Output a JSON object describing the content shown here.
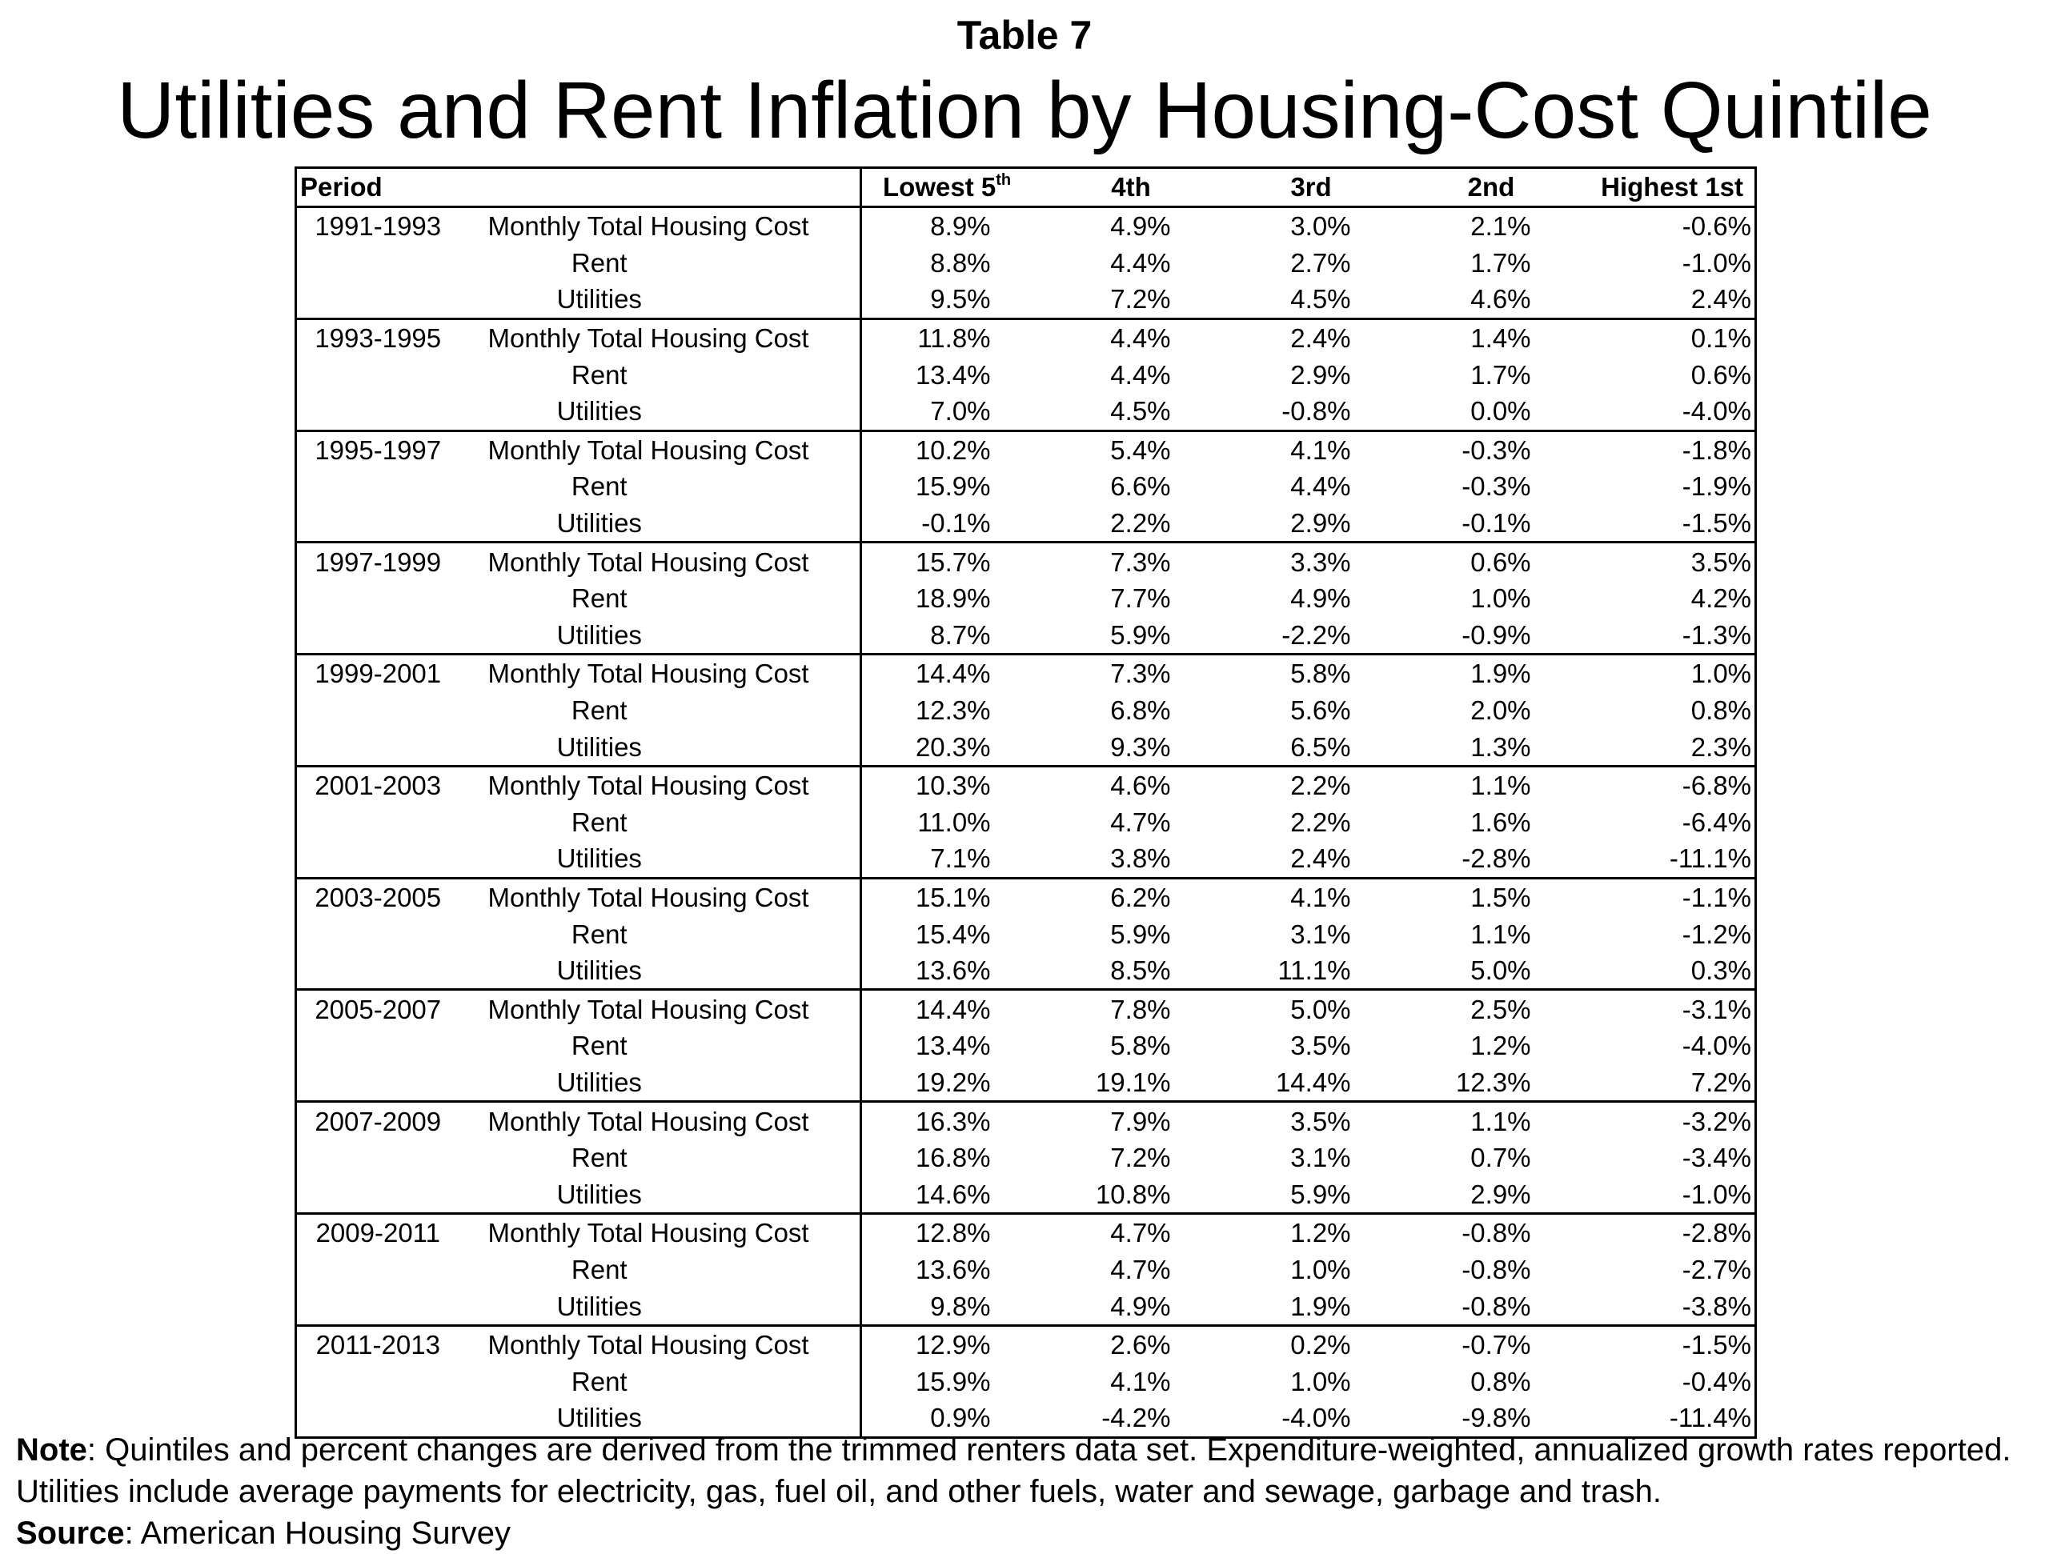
{
  "heading": {
    "table_label": "Table 7",
    "title": "Utilities and Rent Inflation by Housing-Cost Quintile"
  },
  "table": {
    "headers": {
      "period": "Period",
      "lowest": "Lowest 5",
      "lowest_sup": "th",
      "q4": "4th",
      "q3": "3rd",
      "q2": "2nd",
      "highest": "Highest 1st"
    },
    "measure_labels": {
      "total": "Monthly Total Housing Cost",
      "rent": "Rent",
      "utilities": "Utilities"
    },
    "periods": [
      {
        "period": "1991-1993",
        "rows": [
          [
            "8.9%",
            "4.9%",
            "3.0%",
            "2.1%",
            "-0.6%"
          ],
          [
            "8.8%",
            "4.4%",
            "2.7%",
            "1.7%",
            "-1.0%"
          ],
          [
            "9.5%",
            "7.2%",
            "4.5%",
            "4.6%",
            "2.4%"
          ]
        ]
      },
      {
        "period": "1993-1995",
        "rows": [
          [
            "11.8%",
            "4.4%",
            "2.4%",
            "1.4%",
            "0.1%"
          ],
          [
            "13.4%",
            "4.4%",
            "2.9%",
            "1.7%",
            "0.6%"
          ],
          [
            "7.0%",
            "4.5%",
            "-0.8%",
            "0.0%",
            "-4.0%"
          ]
        ]
      },
      {
        "period": "1995-1997",
        "rows": [
          [
            "10.2%",
            "5.4%",
            "4.1%",
            "-0.3%",
            "-1.8%"
          ],
          [
            "15.9%",
            "6.6%",
            "4.4%",
            "-0.3%",
            "-1.9%"
          ],
          [
            "-0.1%",
            "2.2%",
            "2.9%",
            "-0.1%",
            "-1.5%"
          ]
        ]
      },
      {
        "period": "1997-1999",
        "rows": [
          [
            "15.7%",
            "7.3%",
            "3.3%",
            "0.6%",
            "3.5%"
          ],
          [
            "18.9%",
            "7.7%",
            "4.9%",
            "1.0%",
            "4.2%"
          ],
          [
            "8.7%",
            "5.9%",
            "-2.2%",
            "-0.9%",
            "-1.3%"
          ]
        ]
      },
      {
        "period": "1999-2001",
        "rows": [
          [
            "14.4%",
            "7.3%",
            "5.8%",
            "1.9%",
            "1.0%"
          ],
          [
            "12.3%",
            "6.8%",
            "5.6%",
            "2.0%",
            "0.8%"
          ],
          [
            "20.3%",
            "9.3%",
            "6.5%",
            "1.3%",
            "2.3%"
          ]
        ]
      },
      {
        "period": "2001-2003",
        "rows": [
          [
            "10.3%",
            "4.6%",
            "2.2%",
            "1.1%",
            "-6.8%"
          ],
          [
            "11.0%",
            "4.7%",
            "2.2%",
            "1.6%",
            "-6.4%"
          ],
          [
            "7.1%",
            "3.8%",
            "2.4%",
            "-2.8%",
            "-11.1%"
          ]
        ]
      },
      {
        "period": "2003-2005",
        "rows": [
          [
            "15.1%",
            "6.2%",
            "4.1%",
            "1.5%",
            "-1.1%"
          ],
          [
            "15.4%",
            "5.9%",
            "3.1%",
            "1.1%",
            "-1.2%"
          ],
          [
            "13.6%",
            "8.5%",
            "11.1%",
            "5.0%",
            "0.3%"
          ]
        ]
      },
      {
        "period": "2005-2007",
        "rows": [
          [
            "14.4%",
            "7.8%",
            "5.0%",
            "2.5%",
            "-3.1%"
          ],
          [
            "13.4%",
            "5.8%",
            "3.5%",
            "1.2%",
            "-4.0%"
          ],
          [
            "19.2%",
            "19.1%",
            "14.4%",
            "12.3%",
            "7.2%"
          ]
        ]
      },
      {
        "period": "2007-2009",
        "rows": [
          [
            "16.3%",
            "7.9%",
            "3.5%",
            "1.1%",
            "-3.2%"
          ],
          [
            "16.8%",
            "7.2%",
            "3.1%",
            "0.7%",
            "-3.4%"
          ],
          [
            "14.6%",
            "10.8%",
            "5.9%",
            "2.9%",
            "-1.0%"
          ]
        ]
      },
      {
        "period": "2009-2011",
        "rows": [
          [
            "12.8%",
            "4.7%",
            "1.2%",
            "-0.8%",
            "-2.8%"
          ],
          [
            "13.6%",
            "4.7%",
            "1.0%",
            "-0.8%",
            "-2.7%"
          ],
          [
            "9.8%",
            "4.9%",
            "1.9%",
            "-0.8%",
            "-3.8%"
          ]
        ]
      },
      {
        "period": "2011-2013",
        "rows": [
          [
            "12.9%",
            "2.6%",
            "0.2%",
            "-0.7%",
            "-1.5%"
          ],
          [
            "15.9%",
            "4.1%",
            "1.0%",
            "0.8%",
            "-0.4%"
          ],
          [
            "0.9%",
            "-4.2%",
            "-4.0%",
            "-9.8%",
            "-11.4%"
          ]
        ]
      }
    ]
  },
  "notes": {
    "note_label": "Note",
    "note_text": ": Quintiles and percent changes are derived from the trimmed renters data set. Expenditure-weighted, annualized growth rates reported. Utilities include average payments for  electricity, gas, fuel oil, and other fuels, water and sewage, garbage and trash.",
    "source_label": "Source",
    "source_text": ": American Housing Survey"
  }
}
